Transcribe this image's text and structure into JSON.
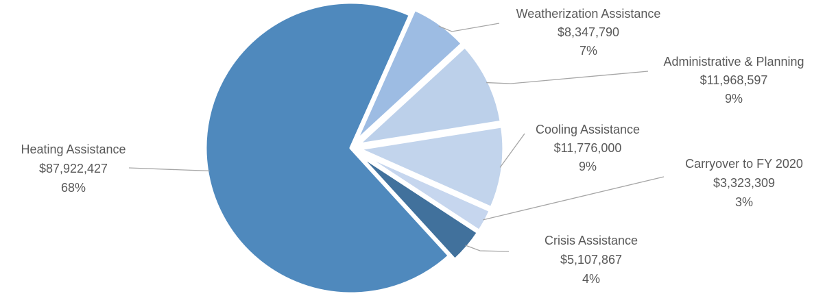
{
  "chart_data": {
    "type": "pie",
    "title": "",
    "slices": [
      {
        "name": "Weatherization Assistance",
        "amount": "$8,347,790",
        "pct": "7%",
        "value": 8347790,
        "color": "#9dbce3"
      },
      {
        "name": "Administrative & Planning",
        "amount": "$11,968,597",
        "pct": "9%",
        "value": 11968597,
        "color": "#bcd0ea"
      },
      {
        "name": "Cooling Assistance",
        "amount": "$11,776,000",
        "pct": "9%",
        "value": 11776000,
        "color": "#c2d4ec"
      },
      {
        "name": "Carryover to FY 2020",
        "amount": "$3,323,309",
        "pct": "3%",
        "value": 3323309,
        "color": "#c6d6ee"
      },
      {
        "name": "Crisis Assistance",
        "amount": "$5,107,867",
        "pct": "4%",
        "value": 5107867,
        "color": "#41719c"
      },
      {
        "name": "Heating Assistance",
        "amount": "$87,922,427",
        "pct": "68%",
        "value": 87922427,
        "color": "#4f89bd"
      }
    ]
  }
}
